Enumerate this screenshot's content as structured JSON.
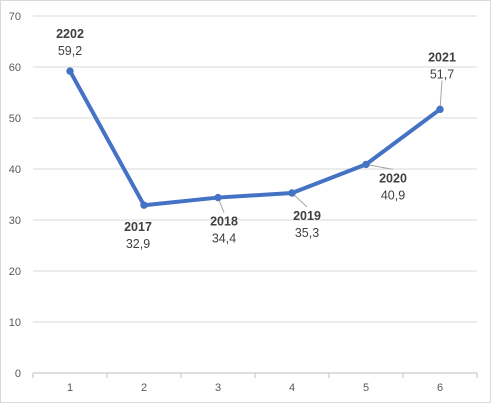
{
  "chart_data": {
    "type": "line",
    "x": [
      1,
      2,
      3,
      4,
      5,
      6
    ],
    "values": [
      59.2,
      32.9,
      34.4,
      35.3,
      40.9,
      51.7
    ],
    "data_labels": [
      {
        "category": "2202",
        "value": "59,2"
      },
      {
        "category": "2017",
        "value": "32,9"
      },
      {
        "category": "2018",
        "value": "34,4"
      },
      {
        "category": "2019",
        "value": "35,3"
      },
      {
        "category": "2020",
        "value": "40,9"
      },
      {
        "category": "2021",
        "value": "51,7"
      }
    ],
    "xticks": [
      "1",
      "2",
      "3",
      "4",
      "5",
      "6"
    ],
    "yticks": [
      "0",
      "10",
      "20",
      "30",
      "40",
      "50",
      "60",
      "70"
    ],
    "ylim": [
      0,
      70
    ],
    "grid": true,
    "legend": "none",
    "colors": {
      "line": "#4472c4",
      "grid": "#d9d9d9",
      "axis": "#bfbfbf",
      "text": "#404040"
    }
  }
}
